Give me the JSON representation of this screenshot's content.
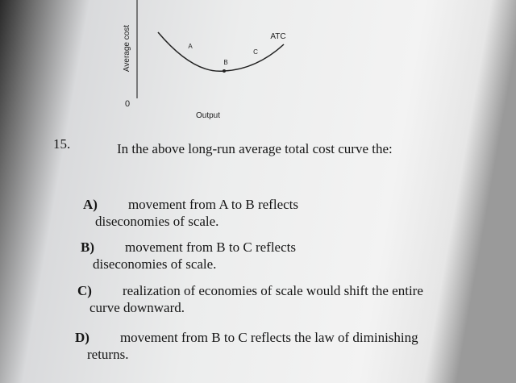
{
  "figure": {
    "y_axis_label": "Average cost",
    "origin_label": "0",
    "x_axis_label": "Output",
    "curve_label": "ATC",
    "points": [
      "A",
      "B",
      "C"
    ]
  },
  "question": {
    "number": "15.",
    "stem": "In the above long-run average total cost curve the:",
    "options": [
      {
        "letter": "A)",
        "text": "movement from A to B reflects diseconomies of scale."
      },
      {
        "letter": "B)",
        "text": "movement from B to C reflects diseconomies of scale."
      },
      {
        "letter": "C)",
        "text": "realization of economies of scale would shift the entire curve downward."
      },
      {
        "letter": "D)",
        "text": "movement from B to C reflects the law of diminishing returns."
      }
    ]
  }
}
